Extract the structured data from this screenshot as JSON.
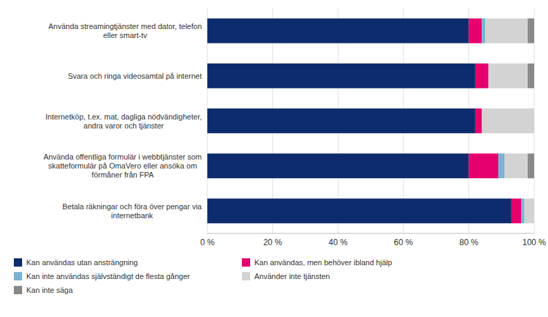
{
  "chart_data": {
    "type": "bar",
    "orientation": "horizontal",
    "stacked": true,
    "categories": [
      "Använda streamingtjänster med dator, telefon\neller smart-tv",
      "Svara och ringa videosamtal på internet",
      "Internetköp, t.ex. mat, dagliga nödvändigheter,\nandra varor och tjänster",
      "Använda offentliga formulär i webbtjänster som\nskatteformulär på OmaVero eller ansöka om\nförmåner från FPA",
      "Betala räkningar och föra över pengar via\ninternetbank"
    ],
    "series": [
      {
        "name": "Kan användas utan ansträngning",
        "color": "#0d2c6e",
        "values": [
          80,
          82,
          82,
          80,
          93
        ]
      },
      {
        "name": "Kan användas, men behöver ibland hjälp",
        "color": "#e5006d",
        "values": [
          4,
          4,
          2,
          9,
          3
        ]
      },
      {
        "name": "Kan inte användas självständigt de flesta gånger",
        "color": "#7ab3d4",
        "values": [
          1,
          0,
          0,
          2,
          1
        ]
      },
      {
        "name": "Använder inte tjänsten",
        "color": "#d3d3d3",
        "values": [
          13,
          12,
          16,
          7,
          3
        ]
      },
      {
        "name": "Kan inte säga",
        "color": "#888888",
        "values": [
          2,
          2,
          0,
          2,
          0
        ]
      }
    ],
    "xlim": [
      0,
      100
    ],
    "xticks": [
      {
        "value": 0,
        "label": "0 %"
      },
      {
        "value": 20,
        "label": "20 %"
      },
      {
        "value": 40,
        "label": "40 %"
      },
      {
        "value": 60,
        "label": "60 %"
      },
      {
        "value": 80,
        "label": "80 %"
      },
      {
        "value": 100,
        "label": "100 %"
      }
    ],
    "grid": true,
    "legend": "bottom"
  }
}
